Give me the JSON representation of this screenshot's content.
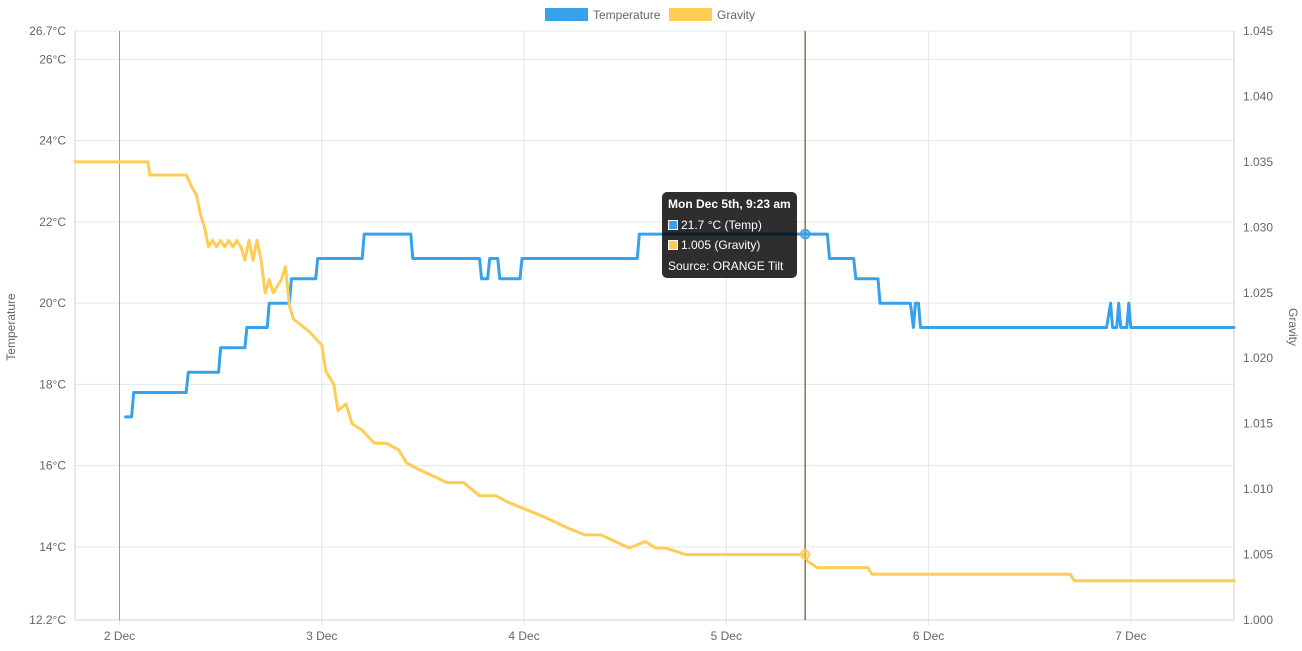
{
  "chart_data": {
    "type": "line",
    "legend": [
      {
        "name": "Temperature",
        "color": "#36a2eb"
      },
      {
        "name": "Gravity",
        "color": "#ffcd56"
      }
    ],
    "legend_position": "top-center",
    "x_axis": {
      "unit": "day",
      "range": [
        1.78,
        7.51
      ],
      "ticks": [
        {
          "value": 2,
          "label": "2 Dec"
        },
        {
          "value": 3,
          "label": "3 Dec"
        },
        {
          "value": 4,
          "label": "4 Dec"
        },
        {
          "value": 5,
          "label": "5 Dec"
        },
        {
          "value": 6,
          "label": "6 Dec"
        },
        {
          "value": 7,
          "label": "7 Dec"
        }
      ]
    },
    "y_left": {
      "label": "Temperature",
      "range": [
        12.2,
        26.7
      ],
      "ticks": [
        {
          "value": 12.2,
          "label": "12.2°C"
        },
        {
          "value": 14,
          "label": "14°C"
        },
        {
          "value": 16,
          "label": "16°C"
        },
        {
          "value": 18,
          "label": "18°C"
        },
        {
          "value": 20,
          "label": "20°C"
        },
        {
          "value": 22,
          "label": "22°C"
        },
        {
          "value": 24,
          "label": "24°C"
        },
        {
          "value": 26,
          "label": "26°C"
        },
        {
          "value": 26.7,
          "label": "26.7°C"
        }
      ]
    },
    "y_right": {
      "label": "Gravity",
      "range": [
        1.0,
        1.045
      ],
      "ticks": [
        {
          "value": 1.0,
          "label": "1.000"
        },
        {
          "value": 1.005,
          "label": "1.005"
        },
        {
          "value": 1.01,
          "label": "1.010"
        },
        {
          "value": 1.015,
          "label": "1.015"
        },
        {
          "value": 1.02,
          "label": "1.020"
        },
        {
          "value": 1.025,
          "label": "1.025"
        },
        {
          "value": 1.03,
          "label": "1.030"
        },
        {
          "value": 1.035,
          "label": "1.035"
        },
        {
          "value": 1.04,
          "label": "1.040"
        },
        {
          "value": 1.045,
          "label": "1.045"
        }
      ]
    },
    "series": [
      {
        "name": "Temperature",
        "axis": "left",
        "color": "#36a2eb",
        "points": [
          [
            2.03,
            17.2
          ],
          [
            2.06,
            17.2
          ],
          [
            2.07,
            17.8
          ],
          [
            2.33,
            17.8
          ],
          [
            2.34,
            18.3
          ],
          [
            2.49,
            18.3
          ],
          [
            2.5,
            18.9
          ],
          [
            2.62,
            18.9
          ],
          [
            2.63,
            19.4
          ],
          [
            2.73,
            19.4
          ],
          [
            2.74,
            20.0
          ],
          [
            2.84,
            20.0
          ],
          [
            2.85,
            20.6
          ],
          [
            2.97,
            20.6
          ],
          [
            2.98,
            21.1
          ],
          [
            3.2,
            21.1
          ],
          [
            3.21,
            21.7
          ],
          [
            3.44,
            21.7
          ],
          [
            3.45,
            21.1
          ],
          [
            3.78,
            21.1
          ],
          [
            3.79,
            20.6
          ],
          [
            3.82,
            20.6
          ],
          [
            3.83,
            21.1
          ],
          [
            3.87,
            21.1
          ],
          [
            3.88,
            20.6
          ],
          [
            3.98,
            20.6
          ],
          [
            3.99,
            21.1
          ],
          [
            4.56,
            21.1
          ],
          [
            4.57,
            21.7
          ],
          [
            5.5,
            21.7
          ],
          [
            5.51,
            21.1
          ],
          [
            5.63,
            21.1
          ],
          [
            5.64,
            20.6
          ],
          [
            5.75,
            20.6
          ],
          [
            5.76,
            20.0
          ],
          [
            5.91,
            20.0
          ],
          [
            5.925,
            19.4
          ],
          [
            5.935,
            20.0
          ],
          [
            5.95,
            20.0
          ],
          [
            5.96,
            19.4
          ],
          [
            6.88,
            19.4
          ],
          [
            6.9,
            20.0
          ],
          [
            6.91,
            19.4
          ],
          [
            6.93,
            19.4
          ],
          [
            6.94,
            20.0
          ],
          [
            6.95,
            19.4
          ],
          [
            6.98,
            19.4
          ],
          [
            6.99,
            20.0
          ],
          [
            7.0,
            19.4
          ],
          [
            7.51,
            19.4
          ]
        ]
      },
      {
        "name": "Gravity",
        "axis": "right",
        "color": "#ffcd56",
        "points": [
          [
            1.78,
            1.035
          ],
          [
            2.14,
            1.035
          ],
          [
            2.15,
            1.034
          ],
          [
            2.33,
            1.034
          ],
          [
            2.36,
            1.033
          ],
          [
            2.38,
            1.0325
          ],
          [
            2.4,
            1.031
          ],
          [
            2.42,
            1.03
          ],
          [
            2.44,
            1.0285
          ],
          [
            2.46,
            1.029
          ],
          [
            2.48,
            1.0285
          ],
          [
            2.5,
            1.029
          ],
          [
            2.52,
            1.0285
          ],
          [
            2.54,
            1.029
          ],
          [
            2.56,
            1.0285
          ],
          [
            2.58,
            1.029
          ],
          [
            2.6,
            1.0285
          ],
          [
            2.62,
            1.0275
          ],
          [
            2.64,
            1.029
          ],
          [
            2.66,
            1.0275
          ],
          [
            2.68,
            1.029
          ],
          [
            2.7,
            1.0275
          ],
          [
            2.72,
            1.025
          ],
          [
            2.74,
            1.026
          ],
          [
            2.76,
            1.025
          ],
          [
            2.8,
            1.026
          ],
          [
            2.82,
            1.027
          ],
          [
            2.84,
            1.024
          ],
          [
            2.86,
            1.023
          ],
          [
            2.9,
            1.0225
          ],
          [
            2.94,
            1.022
          ],
          [
            3.0,
            1.021
          ],
          [
            3.02,
            1.019
          ],
          [
            3.06,
            1.018
          ],
          [
            3.08,
            1.016
          ],
          [
            3.12,
            1.0165
          ],
          [
            3.15,
            1.015
          ],
          [
            3.2,
            1.0145
          ],
          [
            3.26,
            1.0135
          ],
          [
            3.32,
            1.0135
          ],
          [
            3.38,
            1.013
          ],
          [
            3.42,
            1.012
          ],
          [
            3.48,
            1.0115
          ],
          [
            3.55,
            1.011
          ],
          [
            3.62,
            1.0105
          ],
          [
            3.7,
            1.0105
          ],
          [
            3.78,
            1.0095
          ],
          [
            3.86,
            1.0095
          ],
          [
            3.92,
            1.009
          ],
          [
            4.0,
            1.0085
          ],
          [
            4.08,
            1.008
          ],
          [
            4.15,
            1.0075
          ],
          [
            4.22,
            1.007
          ],
          [
            4.3,
            1.0065
          ],
          [
            4.38,
            1.0065
          ],
          [
            4.45,
            1.006
          ],
          [
            4.52,
            1.0055
          ],
          [
            4.6,
            1.006
          ],
          [
            4.65,
            1.0055
          ],
          [
            4.7,
            1.0055
          ],
          [
            4.8,
            1.005
          ],
          [
            4.9,
            1.005
          ],
          [
            5.38,
            1.005
          ],
          [
            5.4,
            1.0045
          ],
          [
            5.45,
            1.004
          ],
          [
            5.7,
            1.004
          ],
          [
            5.72,
            1.0035
          ],
          [
            6.7,
            1.0035
          ],
          [
            6.72,
            1.003
          ],
          [
            7.51,
            1.003
          ]
        ]
      }
    ],
    "crosshair": {
      "x": 5.39,
      "color": "#8b7355"
    },
    "highlight_points": [
      {
        "series": "Temperature",
        "x": 5.39,
        "y": 21.7
      },
      {
        "series": "Gravity",
        "x": 5.39,
        "y": 1.005
      }
    ],
    "tooltip": {
      "title": "Mon Dec 5th, 9:23 am",
      "lines": [
        {
          "text": "21.7 °C (Temp)",
          "color": "#36a2eb"
        },
        {
          "text": "1.005 (Gravity)",
          "color": "#ffcd56"
        }
      ],
      "footer": "Source: ORANGE Tilt"
    }
  }
}
